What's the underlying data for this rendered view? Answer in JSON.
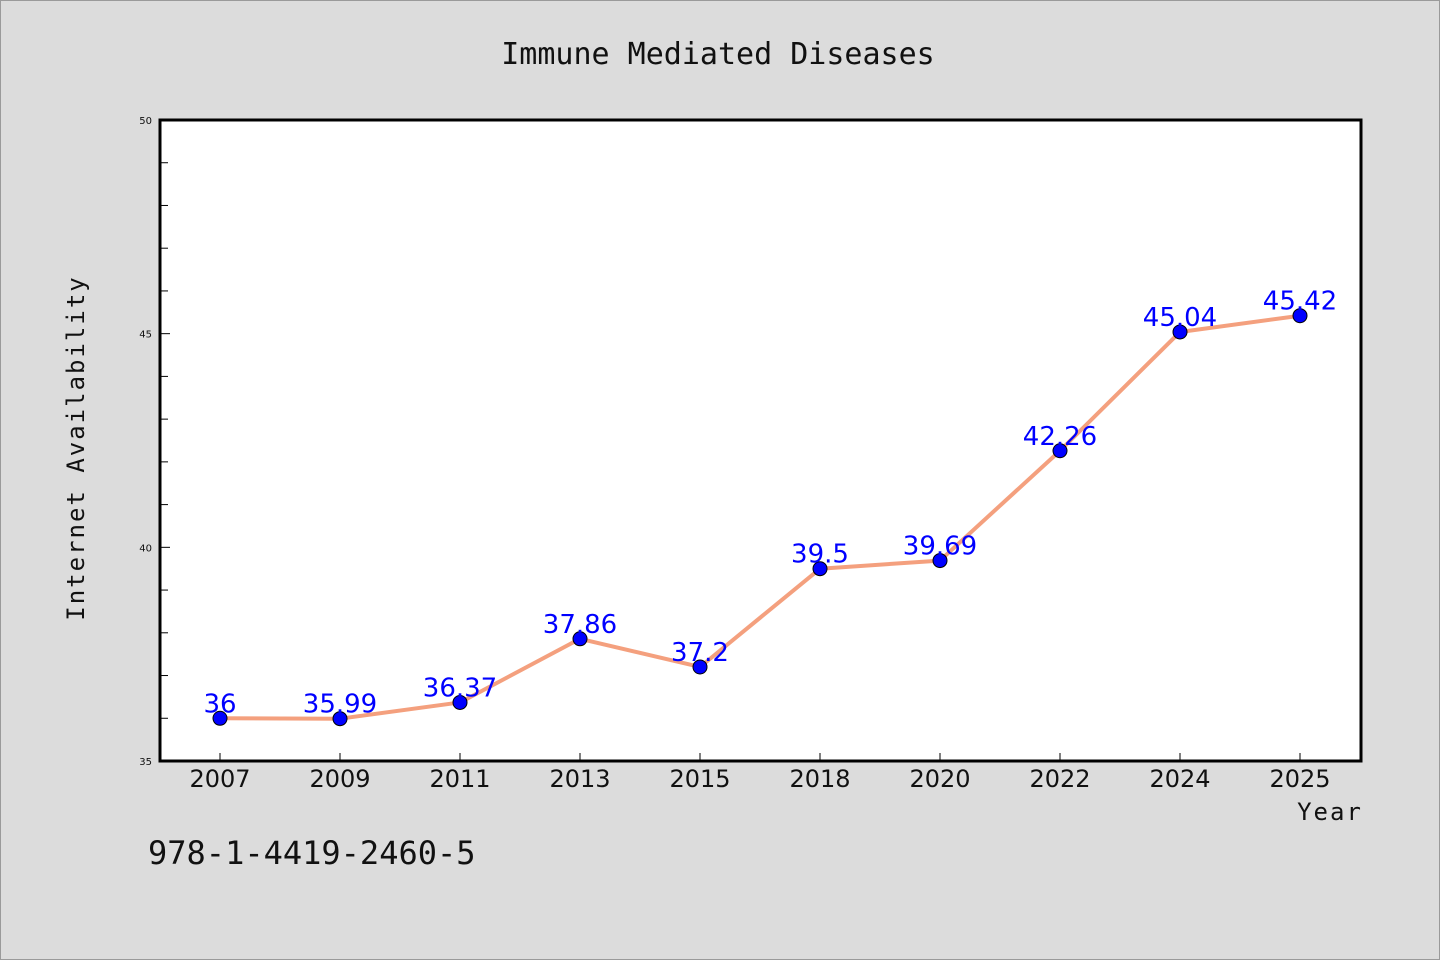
{
  "chart_data": {
    "type": "line",
    "title": "Immune Mediated Diseases",
    "xlabel": "Year",
    "ylabel": "Internet Availability",
    "categories": [
      "2007",
      "2009",
      "2011",
      "2013",
      "2015",
      "2018",
      "2020",
      "2022",
      "2024",
      "2025"
    ],
    "series": [
      {
        "values": [
          36,
          35.99,
          36.37,
          37.86,
          37.2,
          39.5,
          39.69,
          42.26,
          45.04,
          45.42
        ],
        "data_labels": [
          "36",
          "35.99",
          "36.37",
          "37.86",
          "37.2",
          "39.5",
          "39.69",
          "42.26",
          "45.04",
          "45.42"
        ],
        "line_color": "#f4a07e",
        "marker_color": "#0000ff"
      }
    ],
    "ylim": [
      35,
      50
    ],
    "yticks": [
      "35",
      "40",
      "45",
      "50"
    ],
    "grid": false,
    "legend": "none"
  },
  "footer": {
    "isbn": "978-1-4419-2460-5"
  }
}
